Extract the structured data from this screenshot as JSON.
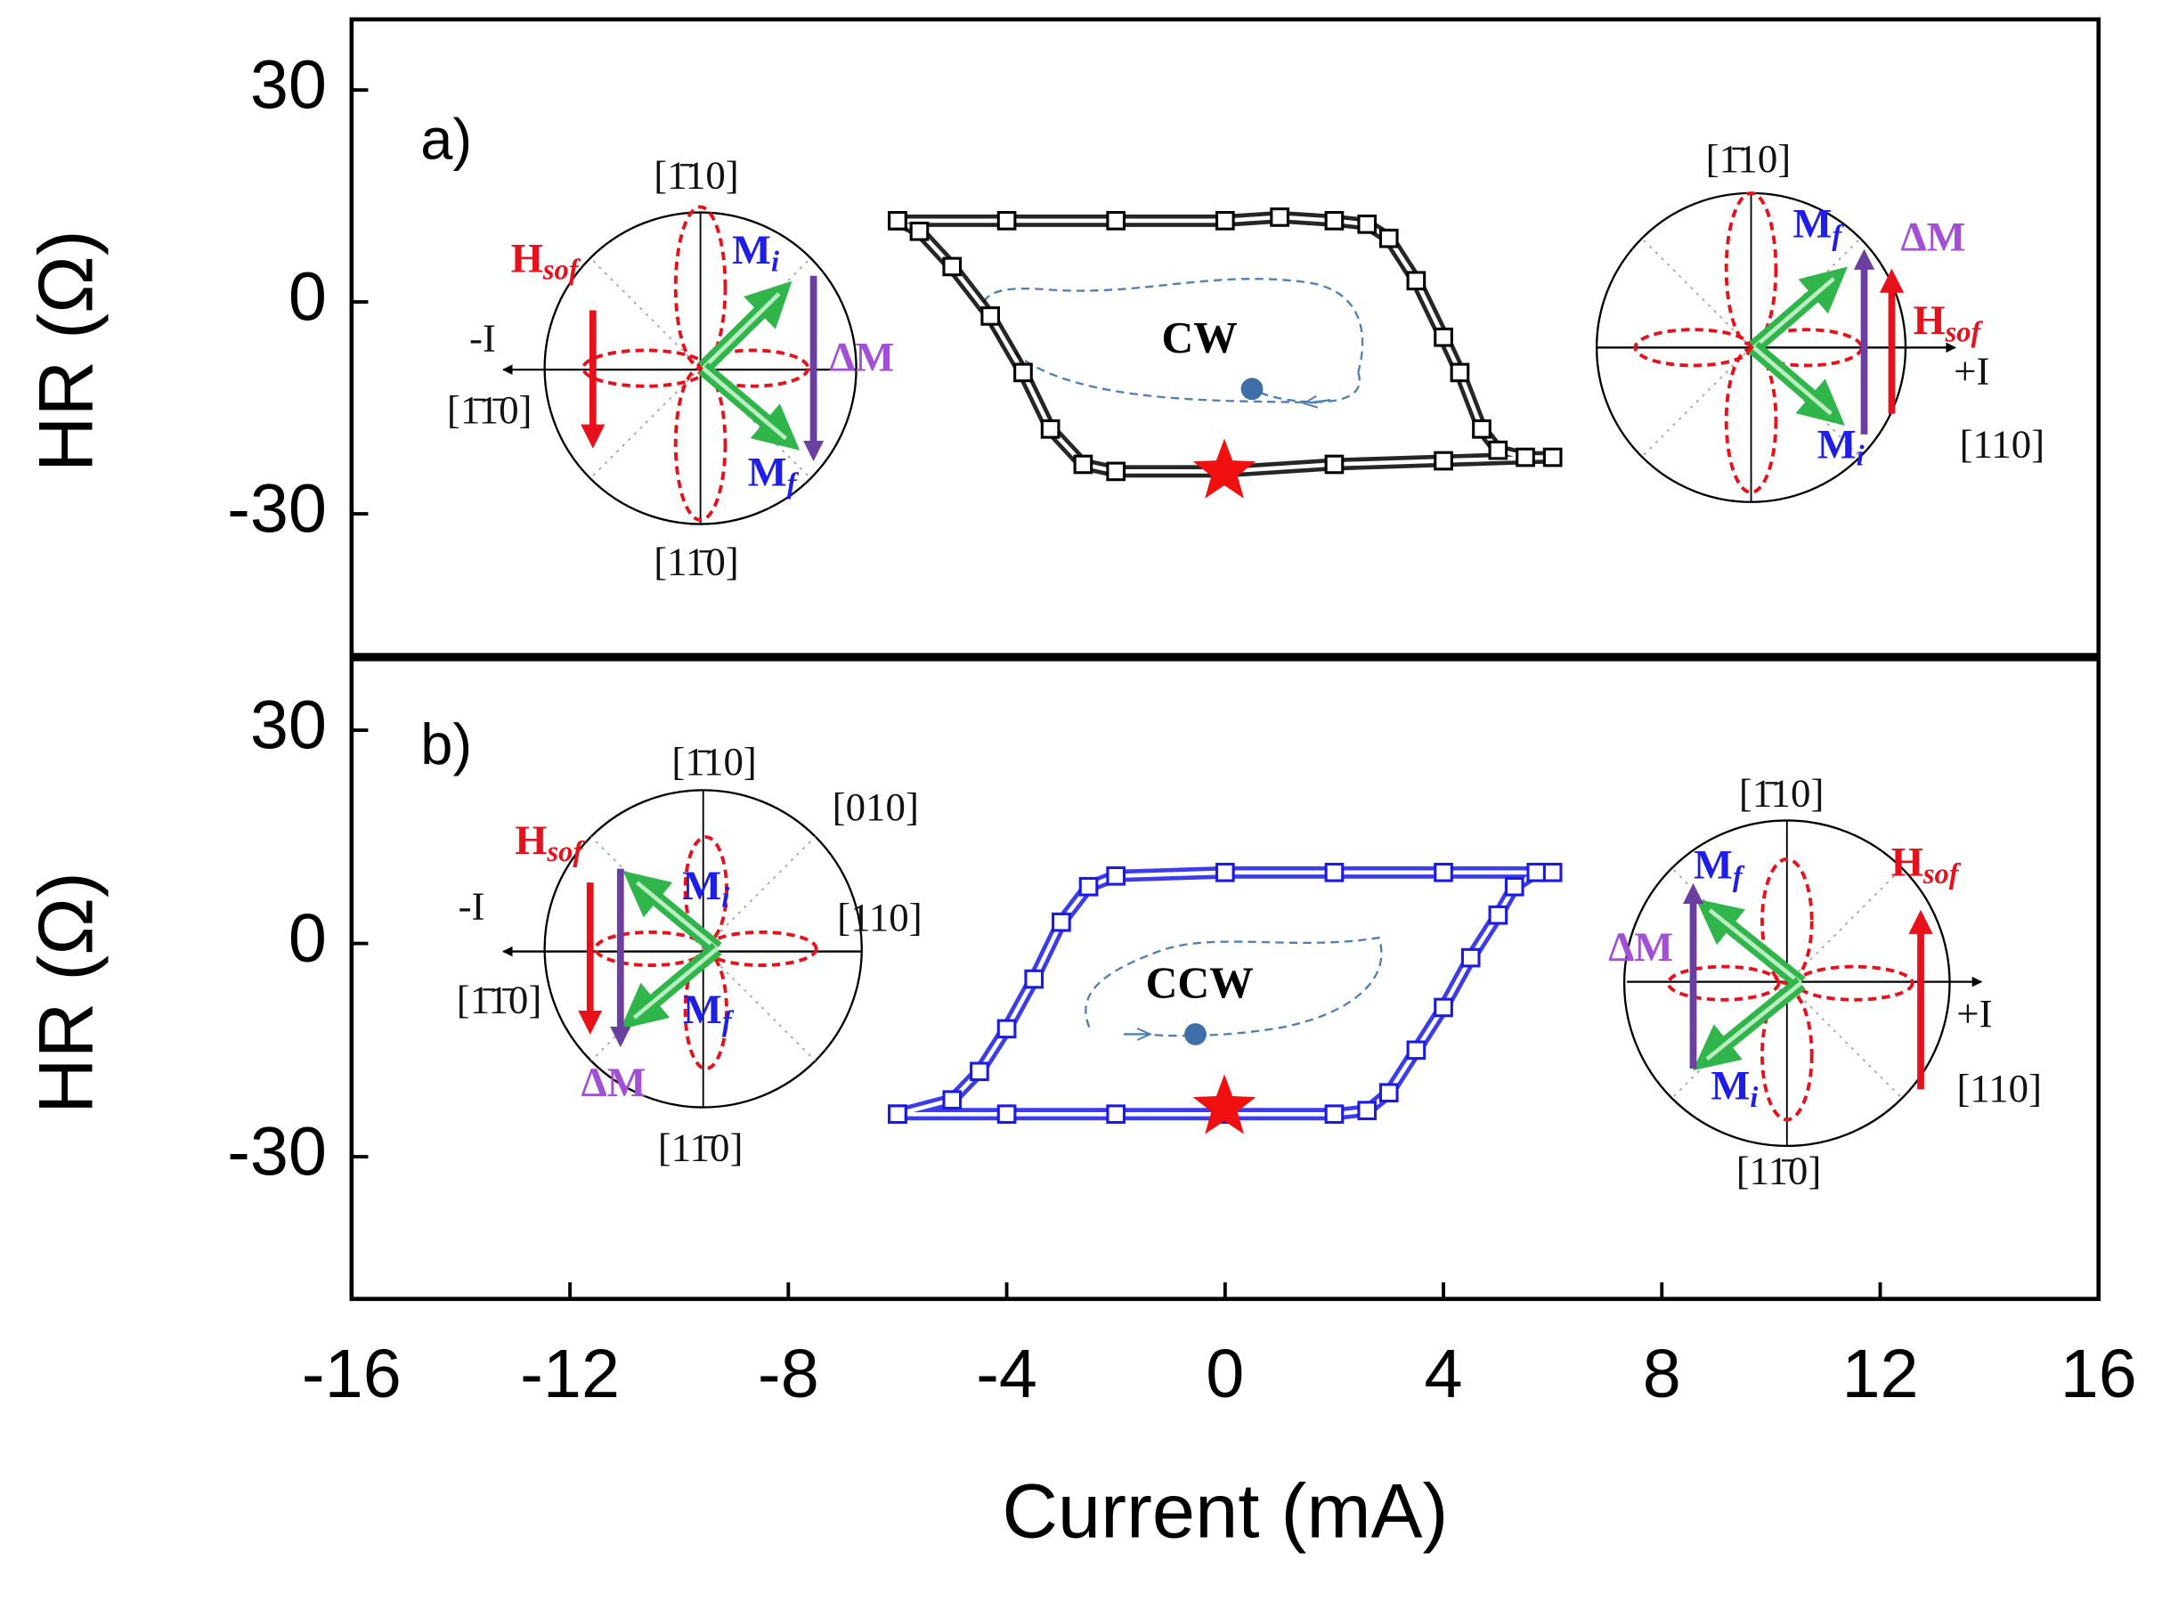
{
  "chart_data": [
    {
      "type": "line",
      "label": "a)",
      "ylabel": "HR (Ω)",
      "xlim": [
        -16,
        16
      ],
      "ylim": [
        -50,
        40
      ],
      "yticks": [
        -30,
        0,
        30
      ],
      "center_label": "CW",
      "series": [
        {
          "color": "#000000",
          "x": [
            -6,
            -4,
            -2,
            0,
            1,
            2,
            2.6,
            3,
            3.5,
            4,
            4.3,
            4.7,
            5,
            5.5,
            6,
            4,
            2,
            0,
            -2,
            -2.6,
            -3.2,
            -3.7,
            -4.3,
            -5,
            -5.6,
            -6
          ],
          "values": [
            11.5,
            11.5,
            11.5,
            11.5,
            12,
            11.5,
            11,
            9,
            3,
            -5,
            -10,
            -18,
            -21,
            -22,
            -22,
            -22.5,
            -23,
            -24,
            -24,
            -23,
            -18,
            -10,
            -2,
            5,
            10,
            11.5
          ]
        }
      ],
      "insets": [
        {
          "labels": [
            "[1̄10]",
            "[11̄0]",
            "-I",
            "[1̄1̄0]",
            {
              "text": "H",
              "sub": "sof"
            },
            {
              "text": "M",
              "sub": "i"
            },
            "ΔM",
            {
              "text": "M",
              "sub": "f"
            }
          ]
        },
        {
          "labels": [
            "[1̄10]",
            {
              "text": "M",
              "sub": "f"
            },
            "ΔM",
            {
              "text": "H",
              "sub": "sof"
            },
            "+I",
            "[110]",
            {
              "text": "M",
              "sub": "i"
            }
          ]
        }
      ]
    },
    {
      "type": "line",
      "label": "b)",
      "ylabel": "HR (Ω)",
      "xlabel": "Current (mA)",
      "xlim": [
        -16,
        16
      ],
      "ylim": [
        -50,
        40
      ],
      "yticks": [
        -30,
        0,
        30
      ],
      "xticks": [
        -16,
        -12,
        -8,
        -4,
        0,
        4,
        8,
        12,
        16
      ],
      "center_label": "CCW",
      "series": [
        {
          "color": "#1a1ae6",
          "x": [
            -6,
            -4,
            -2,
            0,
            2,
            2.6,
            3,
            3.5,
            4,
            4.5,
            5,
            5.3,
            5.7,
            6,
            4,
            2,
            0,
            -2,
            -2.5,
            -3,
            -3.5,
            -4,
            -4.5,
            -5,
            -6
          ],
          "values": [
            -24,
            -24,
            -24,
            -24,
            -24,
            -23.5,
            -21,
            -15,
            -9,
            -2,
            4,
            8,
            10,
            10,
            10,
            10,
            10,
            9.5,
            8,
            3,
            -5,
            -12,
            -18,
            -22,
            -24
          ]
        }
      ],
      "insets": [
        {
          "labels": [
            "[1̄10]",
            "[010]",
            "[110]",
            "-I",
            "[1̄1̄0]",
            {
              "text": "H",
              "sub": "sof"
            },
            {
              "text": "M",
              "sub": "i"
            },
            {
              "text": "M",
              "sub": "f"
            },
            "ΔM",
            "[11̄0]"
          ]
        },
        {
          "labels": [
            "[1̄10]",
            {
              "text": "M",
              "sub": "f"
            },
            {
              "text": "H",
              "sub": "sof"
            },
            "ΔM",
            "+I",
            "[110]",
            {
              "text": "M",
              "sub": "i"
            },
            "[11̄0]"
          ]
        }
      ]
    }
  ]
}
